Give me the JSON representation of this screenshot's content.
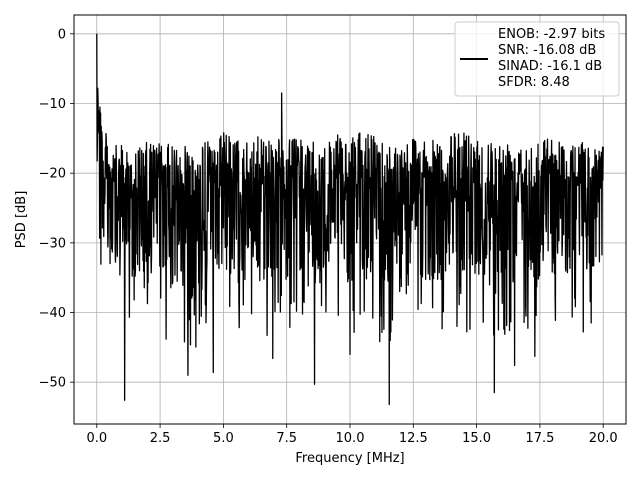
{
  "chart_data": {
    "type": "line",
    "xlabel": "Frequency [MHz]",
    "ylabel": "PSD [dB]",
    "xlim": [
      -0.9,
      20.9
    ],
    "ylim": [
      -56,
      2.7
    ],
    "grid": true,
    "legend_position": "top-right",
    "x_ticks": [
      0.0,
      2.5,
      5.0,
      7.5,
      10.0,
      12.5,
      15.0,
      17.5,
      20.0
    ],
    "x_tick_labels": [
      "0.0",
      "2.5",
      "5.0",
      "7.5",
      "10.0",
      "12.5",
      "15.0",
      "17.5",
      "20.0"
    ],
    "y_ticks": [
      0,
      -10,
      -20,
      -30,
      -40,
      -50
    ],
    "y_tick_labels": [
      "0",
      "−10",
      "−20",
      "−30",
      "−40",
      "−50"
    ],
    "series": [
      {
        "name": "ENOB: -2.97 bits\nSNR: -16.08 dB\nSINAD: -16.1 dB\nSFDR: 8.48",
        "color": "#000000",
        "envelope": {
          "x": [
            0.0,
            0.2,
            0.5,
            1.0,
            1.5,
            2.0,
            2.5,
            3.0,
            3.5,
            4.0,
            4.5,
            5.0,
            5.5,
            6.0,
            6.5,
            7.0,
            7.5,
            8.0,
            8.5,
            9.0,
            9.5,
            10.0,
            10.5,
            11.0,
            11.5,
            12.0,
            12.5,
            13.0,
            13.5,
            14.0,
            14.5,
            15.0,
            15.5,
            16.0,
            16.5,
            17.0,
            17.5,
            18.0,
            18.5,
            19.0,
            19.5,
            20.0
          ],
          "upper": [
            0.0,
            -12.0,
            -16.0,
            -16.0,
            -16.5,
            -15.5,
            -15.5,
            -16.0,
            -15.0,
            -16.0,
            -15.0,
            -14.0,
            -15.0,
            -15.5,
            -14.5,
            -14.5,
            -15.0,
            -15.0,
            -15.5,
            -16.0,
            -14.5,
            -15.0,
            -14.0,
            -14.5,
            -15.5,
            -15.5,
            -14.5,
            -15.0,
            -15.5,
            -14.5,
            -13.5,
            -14.5,
            -15.0,
            -15.5,
            -14.5,
            -15.0,
            -15.0,
            -14.5,
            -15.5,
            -15.5,
            -15.5,
            -16.0
          ],
          "lower": [
            -25.0,
            -38.0,
            -40.0,
            -40.0,
            -43.5,
            -43.0,
            -42.0,
            -47.5,
            -44.0,
            -47.5,
            -43.5,
            -44.5,
            -43.0,
            -43.0,
            -45.0,
            -44.0,
            -44.5,
            -42.0,
            -47.5,
            -44.0,
            -43.0,
            -45.0,
            -43.5,
            -44.0,
            -48.0,
            -44.5,
            -42.5,
            -44.0,
            -44.0,
            -43.0,
            -43.0,
            -43.0,
            -46.5,
            -44.0,
            -43.0,
            -43.5,
            -44.5,
            -43.0,
            -43.0,
            -42.0,
            -44.0,
            -40.0
          ]
        },
        "peaks": [
          {
            "x": 0.0,
            "y": 0.0
          },
          {
            "x": 7.3,
            "y": -8.5
          },
          {
            "x": 0.05,
            "y": -9.5
          }
        ],
        "dips": [
          {
            "x": 1.1,
            "y": -52.6
          },
          {
            "x": 11.55,
            "y": -53.2
          },
          {
            "x": 15.7,
            "y": -51.5
          },
          {
            "x": 8.6,
            "y": -50.3
          },
          {
            "x": 3.6,
            "y": -49.0
          },
          {
            "x": 4.6,
            "y": -48.6
          },
          {
            "x": 6.95,
            "y": -46.6
          },
          {
            "x": 10.0,
            "y": -46.0
          },
          {
            "x": 16.5,
            "y": -47.6
          },
          {
            "x": 17.3,
            "y": -46.3
          }
        ]
      }
    ]
  }
}
